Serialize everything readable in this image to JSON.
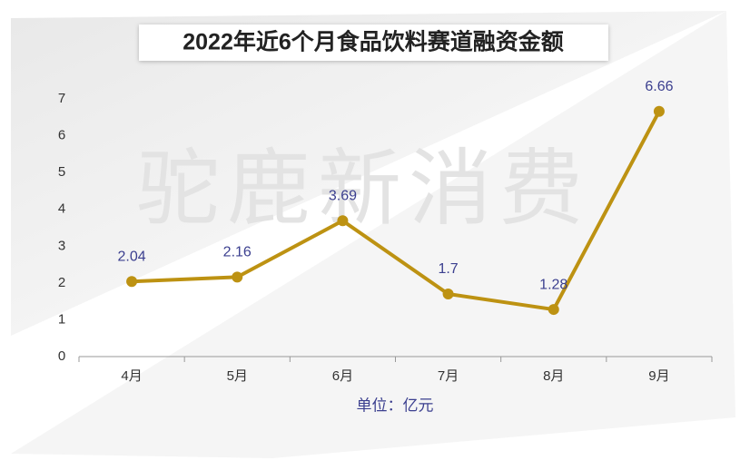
{
  "chart_data": {
    "type": "line",
    "title": "2022年近6个月食品饮料赛道融资金额",
    "watermark": "驼鹿新消费",
    "x_label": "单位：亿元",
    "categories": [
      "4月",
      "5月",
      "6月",
      "7月",
      "8月",
      "9月"
    ],
    "values": [
      2.04,
      2.16,
      3.69,
      1.7,
      1.28,
      6.66
    ],
    "color": "#bd9212",
    "label_color": "#3b3f8f",
    "ylim": [
      0,
      7
    ],
    "yticks": [
      0,
      1,
      2,
      3,
      4,
      5,
      6,
      7
    ],
    "grid": false
  }
}
